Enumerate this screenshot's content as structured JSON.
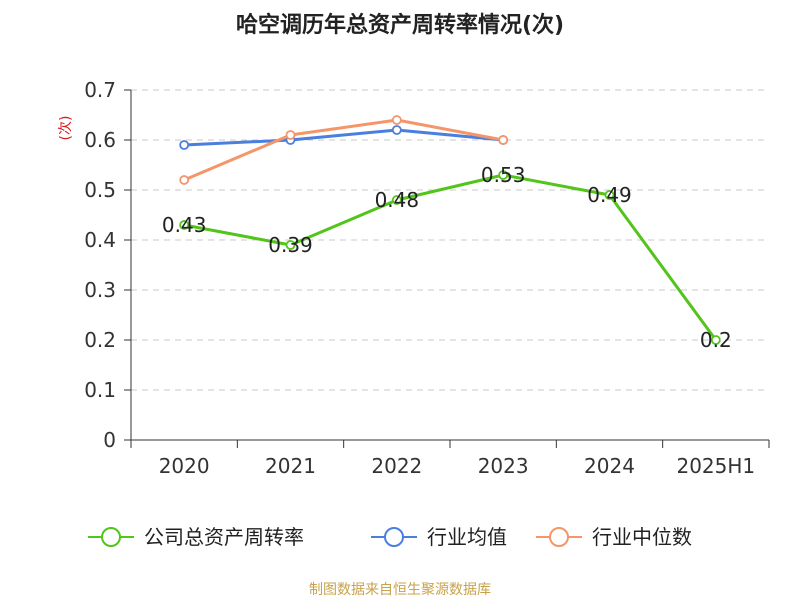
{
  "chart_data": {
    "type": "line",
    "title": "哈空调历年总资产周转率情况(次)",
    "ylabel": "(次)",
    "xlabel": "",
    "categories": [
      "2020",
      "2021",
      "2022",
      "2023",
      "2024",
      "2025H1"
    ],
    "ylim": [
      0,
      0.7
    ],
    "yticks": [
      "0",
      "0.1",
      "0.2",
      "0.3",
      "0.4",
      "0.5",
      "0.6",
      "0.7"
    ],
    "grid": true,
    "legend_position": "bottom",
    "series": [
      {
        "name": "公司总资产周转率",
        "color": "#52c41a",
        "values": [
          0.43,
          0.39,
          0.48,
          0.53,
          0.49,
          0.2
        ],
        "labels": [
          "0.43",
          "0.39",
          "0.48",
          "0.53",
          "0.49",
          "0.2"
        ]
      },
      {
        "name": "行业均值",
        "color": "#4a7fe0",
        "values": [
          0.59,
          0.6,
          0.62,
          0.6,
          null,
          null
        ]
      },
      {
        "name": "行业中位数",
        "color": "#f4956a",
        "values": [
          0.52,
          0.61,
          0.64,
          0.6,
          null,
          null
        ]
      }
    ],
    "source": "制图数据来自恒生聚源数据库"
  }
}
